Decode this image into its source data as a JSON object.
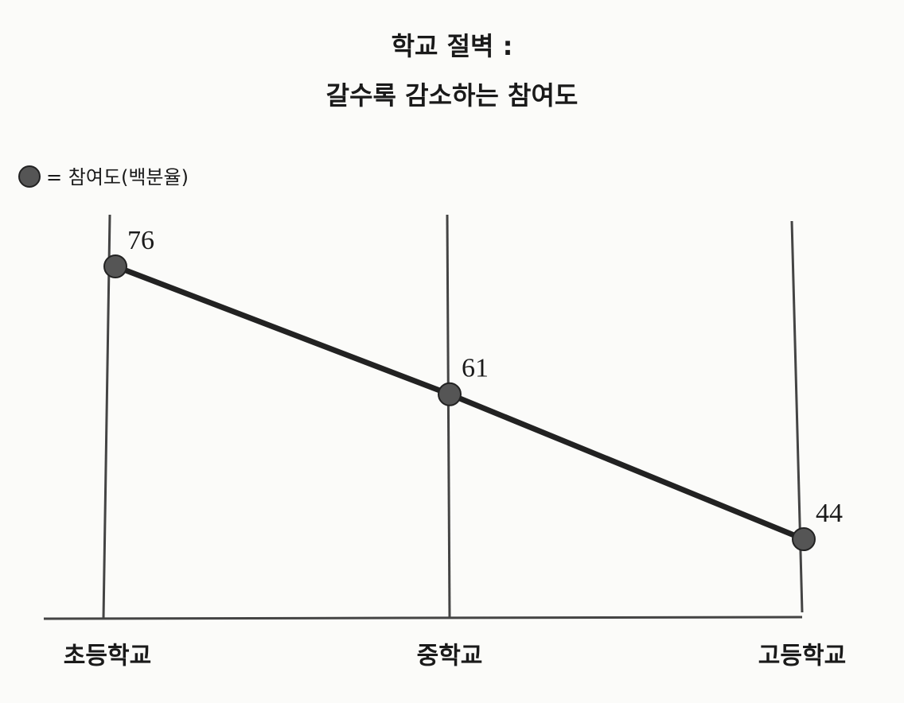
{
  "chart_data": {
    "type": "line",
    "title": [
      "학교 절벽 :",
      "갈수록 감소하는 참여도"
    ],
    "categories": [
      "초등학교",
      "중학교",
      "고등학교"
    ],
    "series": [
      {
        "name": "= 참여도(백분율)",
        "color": "#555555",
        "values": [
          76,
          61,
          44
        ]
      }
    ],
    "line_color": "#222222"
  }
}
